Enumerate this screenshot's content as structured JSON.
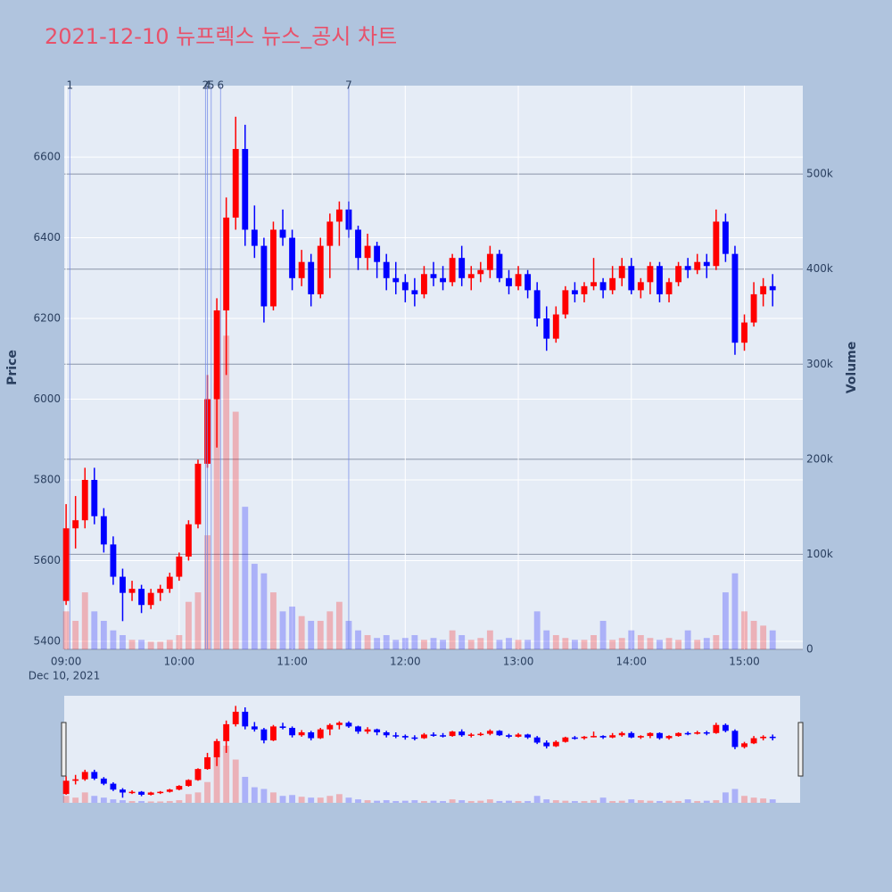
{
  "chart_data": {
    "type": "candlestick",
    "title": "2021-12-10 뉴프렉스 뉴스_공시 차트",
    "ylabel": "Price",
    "y2label": "Volume",
    "x_date_label": "Dec 10, 2021",
    "increasing_color": "#ff0000",
    "decreasing_color": "#0000ff",
    "x": [
      "09:00",
      "09:05",
      "09:10",
      "09:15",
      "09:20",
      "09:25",
      "09:30",
      "09:35",
      "09:40",
      "09:45",
      "09:50",
      "09:55",
      "10:00",
      "10:05",
      "10:10",
      "10:15",
      "10:20",
      "10:25",
      "10:30",
      "10:35",
      "10:40",
      "10:45",
      "10:50",
      "10:55",
      "11:00",
      "11:05",
      "11:10",
      "11:15",
      "11:20",
      "11:25",
      "11:30",
      "11:35",
      "11:40",
      "11:45",
      "11:50",
      "11:55",
      "12:00",
      "12:05",
      "12:10",
      "12:15",
      "12:20",
      "12:25",
      "12:30",
      "12:35",
      "12:40",
      "12:45",
      "12:50",
      "12:55",
      "13:00",
      "13:05",
      "13:10",
      "13:15",
      "13:20",
      "13:25",
      "13:30",
      "13:35",
      "13:40",
      "13:45",
      "13:50",
      "13:55",
      "14:00",
      "14:05",
      "14:10",
      "14:15",
      "14:20",
      "14:25",
      "14:30",
      "14:35",
      "14:40",
      "14:45",
      "14:50",
      "14:55",
      "15:00",
      "15:05",
      "15:10",
      "15:15"
    ],
    "open": [
      5500,
      5680,
      5700,
      5800,
      5710,
      5640,
      5560,
      5520,
      5530,
      5490,
      5520,
      5530,
      5560,
      5610,
      5690,
      5840,
      6000,
      6220,
      6450,
      6620,
      6420,
      6380,
      6230,
      6420,
      6400,
      6300,
      6340,
      6260,
      6380,
      6440,
      6470,
      6420,
      6350,
      6380,
      6340,
      6300,
      6290,
      6270,
      6260,
      6310,
      6300,
      6290,
      6350,
      6300,
      6310,
      6320,
      6360,
      6300,
      6280,
      6310,
      6270,
      6200,
      6150,
      6210,
      6270,
      6260,
      6280,
      6290,
      6270,
      6300,
      6330,
      6270,
      6290,
      6330,
      6260,
      6290,
      6330,
      6320,
      6340,
      6330,
      6440,
      6360,
      6140,
      6190,
      6260,
      6280
    ],
    "high": [
      5740,
      5760,
      5830,
      5830,
      5730,
      5660,
      5580,
      5550,
      5540,
      5530,
      5540,
      5570,
      5620,
      5700,
      5850,
      6060,
      6250,
      6500,
      6700,
      6680,
      6480,
      6400,
      6440,
      6470,
      6420,
      6370,
      6360,
      6400,
      6460,
      6490,
      6490,
      6430,
      6410,
      6390,
      6360,
      6340,
      6310,
      6300,
      6330,
      6340,
      6330,
      6360,
      6380,
      6330,
      6340,
      6380,
      6370,
      6320,
      6330,
      6320,
      6290,
      6230,
      6230,
      6280,
      6290,
      6290,
      6350,
      6300,
      6330,
      6350,
      6350,
      6300,
      6340,
      6340,
      6300,
      6340,
      6350,
      6360,
      6360,
      6470,
      6460,
      6380,
      6210,
      6290,
      6300,
      6310
    ],
    "low": [
      5490,
      5630,
      5680,
      5690,
      5620,
      5540,
      5450,
      5500,
      5470,
      5480,
      5500,
      5520,
      5550,
      5600,
      5680,
      5830,
      5880,
      6060,
      6420,
      6380,
      6350,
      6190,
      6220,
      6380,
      6270,
      6280,
      6230,
      6250,
      6300,
      6380,
      6400,
      6320,
      6320,
      6300,
      6270,
      6260,
      6240,
      6230,
      6250,
      6280,
      6270,
      6280,
      6280,
      6270,
      6290,
      6300,
      6290,
      6260,
      6270,
      6250,
      6180,
      6120,
      6140,
      6200,
      6240,
      6240,
      6270,
      6250,
      6260,
      6280,
      6260,
      6250,
      6260,
      6240,
      6240,
      6280,
      6300,
      6310,
      6300,
      6320,
      6340,
      6110,
      6120,
      6180,
      6230,
      6230
    ],
    "close": [
      5680,
      5700,
      5800,
      5710,
      5640,
      5560,
      5520,
      5530,
      5490,
      5520,
      5530,
      5560,
      5610,
      5690,
      5840,
      6000,
      6220,
      6450,
      6620,
      6420,
      6380,
      6230,
      6420,
      6400,
      6300,
      6340,
      6260,
      6380,
      6440,
      6470,
      6420,
      6350,
      6380,
      6340,
      6300,
      6290,
      6270,
      6260,
      6310,
      6300,
      6290,
      6350,
      6300,
      6310,
      6320,
      6360,
      6300,
      6280,
      6310,
      6270,
      6200,
      6150,
      6210,
      6270,
      6260,
      6280,
      6290,
      6270,
      6300,
      6330,
      6270,
      6290,
      6330,
      6260,
      6290,
      6330,
      6320,
      6340,
      6330,
      6440,
      6360,
      6140,
      6190,
      6260,
      6280,
      6270
    ],
    "volume": [
      40000,
      30000,
      60000,
      40000,
      30000,
      20000,
      15000,
      10000,
      10000,
      8000,
      8000,
      10000,
      15000,
      50000,
      60000,
      120000,
      280000,
      330000,
      250000,
      150000,
      90000,
      80000,
      60000,
      40000,
      45000,
      35000,
      30000,
      30000,
      40000,
      50000,
      30000,
      20000,
      15000,
      12000,
      15000,
      10000,
      12000,
      15000,
      10000,
      12000,
      10000,
      20000,
      15000,
      10000,
      12000,
      20000,
      10000,
      12000,
      10000,
      10000,
      40000,
      20000,
      15000,
      12000,
      10000,
      10000,
      15000,
      30000,
      10000,
      12000,
      20000,
      15000,
      12000,
      10000,
      12000,
      10000,
      20000,
      10000,
      12000,
      15000,
      60000,
      80000,
      40000,
      30000,
      25000,
      20000
    ],
    "xlim": [
      "08:59",
      "15:31"
    ],
    "xticks": [
      "09:00",
      "10:00",
      "11:00",
      "12:00",
      "13:00",
      "14:00",
      "15:00"
    ],
    "ylim": [
      5380,
      6777
    ],
    "yticks": [
      5400,
      5600,
      5800,
      6000,
      6200,
      6400,
      6600
    ],
    "y2lim": [
      0,
      593000
    ],
    "y2ticks": [
      0,
      {
        "value": 100000,
        "label": "100k"
      },
      {
        "value": 200000,
        "label": "200k"
      },
      {
        "value": 300000,
        "label": "300k"
      },
      {
        "value": 400000,
        "label": "400k"
      },
      {
        "value": 500000,
        "label": "500k"
      }
    ],
    "markers": [
      {
        "label": "1",
        "time": "09:02"
      },
      {
        "label": "2",
        "time": "10:14"
      },
      {
        "label": "4",
        "time": "10:15"
      },
      {
        "label": "5",
        "time": "10:17"
      },
      {
        "label": "6",
        "time": "10:22"
      },
      {
        "label": "7",
        "time": "11:30"
      }
    ]
  }
}
